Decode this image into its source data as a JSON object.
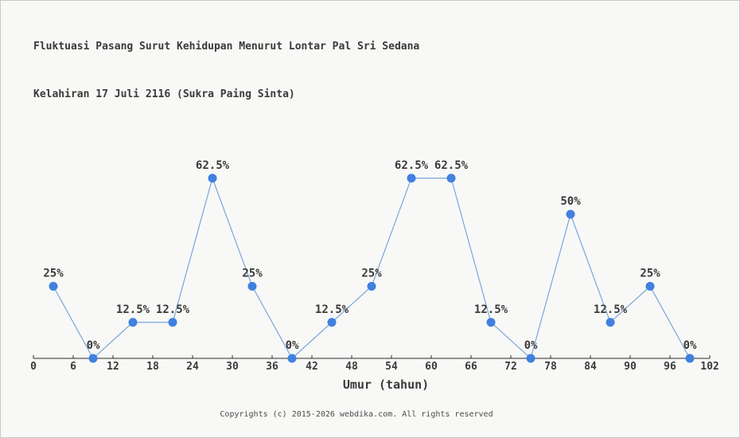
{
  "title": {
    "line1": "Fluktuasi Pasang Surut Kehidupan Menurut Lontar Pal Sri Sedana",
    "line2": "Kelahiran 17 Juli 2116 (Sukra Paing Sinta)"
  },
  "footer": "Copyrights (c) 2015-2026 webdika.com. All rights reserved",
  "colors": {
    "background": "#f8f8f6",
    "border": "#c9c9c9",
    "text": "#3a3a3a",
    "muted": "#4b4b4b",
    "axis": "#2b2b2b",
    "line": "#7aa6dd",
    "marker": "#4080e0"
  },
  "chart_data": {
    "type": "line",
    "title": "Fluktuasi Pasang Surut Kehidupan Menurut Lontar Pal Sri Sedana Kelahiran 17 Juli 2116 (Sukra Paing Sinta)",
    "xlabel": "Umur (tahun)",
    "ylabel": "",
    "x": [
      3,
      9,
      15,
      21,
      27,
      33,
      39,
      45,
      51,
      57,
      63,
      69,
      75,
      81,
      87,
      93,
      99
    ],
    "values": [
      25,
      0,
      12.5,
      12.5,
      62.5,
      25,
      0,
      12.5,
      25,
      62.5,
      62.5,
      12.5,
      0,
      50,
      12.5,
      25,
      0
    ],
    "point_labels": [
      "25%",
      "0%",
      "12.5%",
      "12.5%",
      "62.5%",
      "25%",
      "0%",
      "12.5%",
      "25%",
      "62.5%",
      "62.5%",
      "12.5%",
      "0%",
      "50%",
      "12.5%",
      "25%",
      "0%"
    ],
    "x_ticks": [
      0,
      6,
      12,
      18,
      24,
      30,
      36,
      42,
      48,
      54,
      60,
      66,
      72,
      78,
      84,
      90,
      96,
      102
    ],
    "xlim": [
      0,
      102
    ],
    "ylim": [
      0,
      70
    ],
    "grid": false,
    "legend": false
  }
}
